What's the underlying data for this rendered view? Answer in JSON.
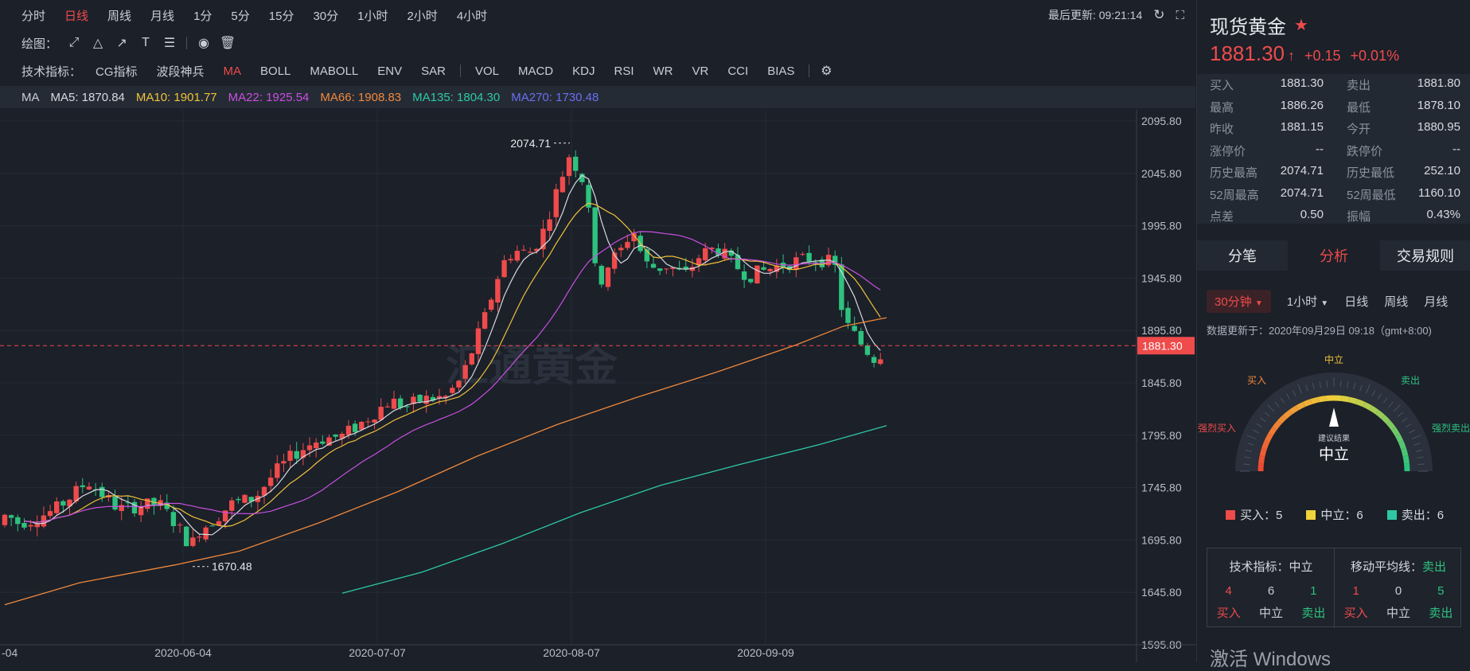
{
  "toolbar": {
    "periods": [
      "分时",
      "日线",
      "周线",
      "月线",
      "1分",
      "5分",
      "15分",
      "30分",
      "1小时",
      "2小时",
      "4小时"
    ],
    "active_period": "日线",
    "draw_label": "绘图：",
    "indicator_label": "技术指标：",
    "indicators": [
      "CG指标",
      "波段神兵",
      "MA",
      "BOLL",
      "MABOLL",
      "ENV",
      "SAR",
      "VOL",
      "MACD",
      "KDJ",
      "RSI",
      "WR",
      "VR",
      "CCI",
      "BIAS"
    ],
    "active_indicator": "MA",
    "last_update_label": "最后更新: 09:21:14"
  },
  "legend": {
    "ma": "MA",
    "ma5": "MA5: 1870.84",
    "ma10": "MA10: 1901.77",
    "ma22": "MA22: 1925.54",
    "ma66": "MA66: 1908.83",
    "ma135": "MA135: 1804.30",
    "ma270": "MA270: 1730.48",
    "colors": {
      "ma5": "#d6dae1",
      "ma10": "#f0c239",
      "ma22": "#c94fe0",
      "ma66": "#f0883b",
      "ma135": "#2ec7a6",
      "ma270": "#6a6ff0"
    }
  },
  "chart_data": {
    "type": "candlestick",
    "y_ticks": [
      "2095.80",
      "2045.80",
      "1995.80",
      "1945.80",
      "1895.80",
      "1845.80",
      "1795.80",
      "1745.80",
      "1695.80",
      "1645.80",
      "1595.80"
    ],
    "ylim": [
      1595.8,
      2095.8
    ],
    "x_ticks": [
      "-04",
      "2020-06-04",
      "2020-07-07",
      "2020-08-07",
      "2020-09-09"
    ],
    "current_price_label": "1881.30",
    "current_price": 1881.3,
    "high_label": "2074.71",
    "low_label": "1670.48",
    "high": 2074.71,
    "low": 1670.48,
    "watermark": "汇通黄金",
    "up_color": "#ef4b4b",
    "down_color": "#2ec27e"
  },
  "quote": {
    "title": "现货黄金",
    "price": "1881.30",
    "arrow": "↑",
    "change": "+0.15",
    "change_pct": "+0.01%",
    "rows": [
      [
        {
          "label": "买入",
          "value": "1881.30"
        },
        {
          "label": "卖出",
          "value": "1881.80"
        }
      ],
      [
        {
          "label": "最高",
          "value": "1886.26"
        },
        {
          "label": "最低",
          "value": "1878.10"
        }
      ],
      [
        {
          "label": "昨收",
          "value": "1881.15"
        },
        {
          "label": "今开",
          "value": "1880.95"
        }
      ],
      [
        {
          "label": "涨停价",
          "value": "--"
        },
        {
          "label": "跌停价",
          "value": "--"
        }
      ],
      [
        {
          "label": "历史最高",
          "value": "2074.71"
        },
        {
          "label": "历史最低",
          "value": "252.10"
        }
      ],
      [
        {
          "label": "52周最高",
          "value": "2074.71"
        },
        {
          "label": "52周最低",
          "value": "1160.10"
        }
      ],
      [
        {
          "label": "点差",
          "value": "0.50"
        },
        {
          "label": "振幅",
          "value": "0.43%"
        }
      ]
    ]
  },
  "tabs": [
    "分笔",
    "分析",
    "交易规则"
  ],
  "active_tab": "分析",
  "analysis": {
    "periods": [
      "30分钟",
      "1小时",
      "日线",
      "周线",
      "月线"
    ],
    "active_period": "30分钟",
    "updated": "数据更新于：2020年09月29日 09:18（gmt+8:00)",
    "gauge": {
      "strong_buy": "强烈买入",
      "buy": "买入",
      "neutral": "中立",
      "sell": "卖出",
      "strong_sell": "强烈卖出",
      "result_label": "建议结果",
      "result": "中立",
      "needle_fraction": 0.5
    },
    "counts": [
      {
        "label": "买入：5",
        "color": "#ef4b4b"
      },
      {
        "label": "中立：6",
        "color": "#f0d23b"
      },
      {
        "label": "卖出：6",
        "color": "#2ec7a6"
      }
    ],
    "technical": {
      "title": "技术指标：",
      "status": "中立",
      "values": [
        "4",
        "6",
        "1"
      ],
      "labels": [
        "买入",
        "中立",
        "卖出"
      ]
    },
    "moving_avg": {
      "title": "移动平均线：",
      "status": "卖出",
      "values": [
        "1",
        "0",
        "5"
      ],
      "labels": [
        "买入",
        "中立",
        "卖出"
      ]
    }
  },
  "os_watermark": "激活 Windows"
}
